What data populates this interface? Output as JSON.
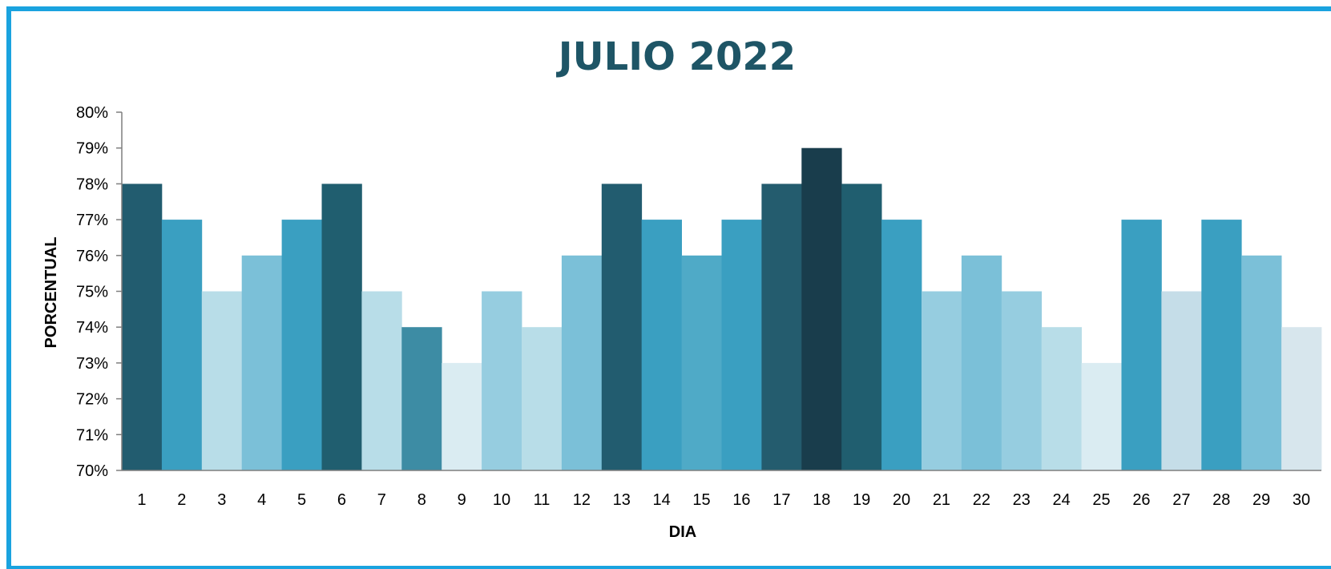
{
  "chart_data": {
    "type": "bar",
    "title": "JULIO 2022",
    "xlabel": "DIA",
    "ylabel": "PORCENTUAL",
    "ylim": [
      70,
      80
    ],
    "y_tick_labels": [
      "70%",
      "71%",
      "72%",
      "73%",
      "74%",
      "75%",
      "76%",
      "77%",
      "78%",
      "79%",
      "80%"
    ],
    "categories": [
      "1",
      "2",
      "3",
      "4",
      "5",
      "6",
      "7",
      "8",
      "9",
      "10",
      "11",
      "12",
      "13",
      "14",
      "15",
      "16",
      "17",
      "18",
      "19",
      "20",
      "21",
      "22",
      "23",
      "24",
      "25",
      "26",
      "27",
      "28",
      "29",
      "30"
    ],
    "values": [
      78,
      77,
      75,
      76,
      77,
      78,
      75,
      74,
      73,
      75,
      74,
      76,
      78,
      77,
      76,
      77,
      78,
      79,
      78,
      77,
      75,
      76,
      75,
      74,
      73,
      77,
      75,
      77,
      76,
      74
    ],
    "bar_colors": [
      "#225c6f",
      "#3a9fc1",
      "#b8dde8",
      "#7bc0d8",
      "#3a9fc1",
      "#205e6f",
      "#b8dde8",
      "#3d8ca4",
      "#daecf2",
      "#96cde0",
      "#b8dde8",
      "#7bc0d8",
      "#225c6f",
      "#3a9fc1",
      "#4faac7",
      "#3a9fc1",
      "#245c6e",
      "#193d4c",
      "#205e6f",
      "#3a9fc1",
      "#96cde0",
      "#7bc0d8",
      "#96cde0",
      "#b8dde8",
      "#daecf2",
      "#3a9fc1",
      "#c5dde8",
      "#3a9fc1",
      "#7bc0d8",
      "#d7e6ed"
    ],
    "grid": false,
    "legend": "none"
  }
}
